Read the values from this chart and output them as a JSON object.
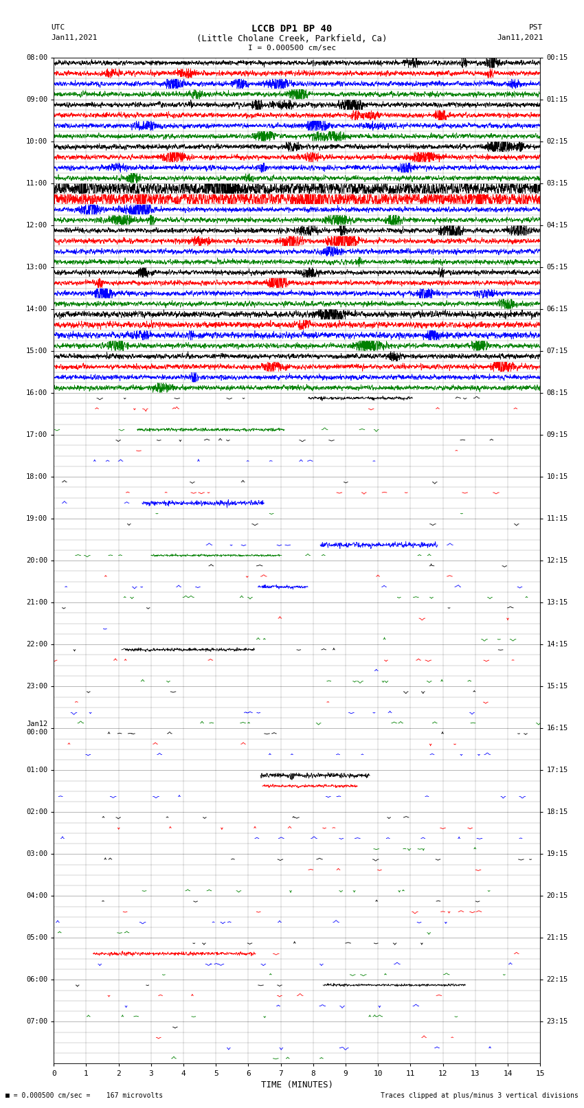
{
  "title_line1": "LCCB DP1 BP 40",
  "title_line2": "(Little Cholane Creek, Parkfield, Ca)",
  "scale_label": "I = 0.000500 cm/sec",
  "utc_label": "UTC",
  "pst_label": "PST",
  "date_left": "Jan11,2021",
  "date_right": "Jan11,2021",
  "date_left2": "Jan12",
  "xlabel": "TIME (MINUTES)",
  "footer_left": "= 0.000500 cm/sec =    167 microvolts",
  "footer_right": "Traces clipped at plus/minus 3 vertical divisions",
  "xlim": [
    0,
    15
  ],
  "xticks": [
    0,
    1,
    2,
    3,
    4,
    5,
    6,
    7,
    8,
    9,
    10,
    11,
    12,
    13,
    14,
    15
  ],
  "num_rows": 96,
  "colors_cycle": [
    "black",
    "red",
    "blue",
    "green"
  ],
  "fig_width": 8.5,
  "fig_height": 16.13,
  "left_times": [
    "08:00",
    "",
    "",
    "",
    "09:00",
    "",
    "",
    "",
    "10:00",
    "",
    "",
    "",
    "11:00",
    "",
    "",
    "",
    "12:00",
    "",
    "",
    "",
    "13:00",
    "",
    "",
    "",
    "14:00",
    "",
    "",
    "",
    "15:00",
    "",
    "",
    "",
    "16:00",
    "",
    "",
    "",
    "17:00",
    "",
    "",
    "",
    "18:00",
    "",
    "",
    "",
    "19:00",
    "",
    "",
    "",
    "20:00",
    "",
    "",
    "",
    "21:00",
    "",
    "",
    "",
    "22:00",
    "",
    "",
    "",
    "23:00",
    "",
    "",
    "",
    "Jan12\n00:00",
    "",
    "",
    "",
    "01:00",
    "",
    "",
    "",
    "02:00",
    "",
    "",
    "",
    "03:00",
    "",
    "",
    "",
    "04:00",
    "",
    "",
    "",
    "05:00",
    "",
    "",
    "",
    "06:00",
    "",
    "",
    "",
    "07:00",
    "",
    "",
    ""
  ],
  "right_times": [
    "00:15",
    "",
    "",
    "",
    "01:15",
    "",
    "",
    "",
    "02:15",
    "",
    "",
    "",
    "03:15",
    "",
    "",
    "",
    "04:15",
    "",
    "",
    "",
    "05:15",
    "",
    "",
    "",
    "06:15",
    "",
    "",
    "",
    "07:15",
    "",
    "",
    "",
    "08:15",
    "",
    "",
    "",
    "09:15",
    "",
    "",
    "",
    "10:15",
    "",
    "",
    "",
    "11:15",
    "",
    "",
    "",
    "12:15",
    "",
    "",
    "",
    "13:15",
    "",
    "",
    "",
    "14:15",
    "",
    "",
    "",
    "15:15",
    "",
    "",
    "",
    "16:15",
    "",
    "",
    "",
    "17:15",
    "",
    "",
    "",
    "18:15",
    "",
    "",
    "",
    "19:15",
    "",
    "",
    "",
    "20:15",
    "",
    "",
    "",
    "21:15",
    "",
    "",
    "",
    "22:15",
    "",
    "",
    "",
    "23:15",
    "",
    "",
    ""
  ],
  "dense_rows": 32,
  "noise_scale_dense": 0.12,
  "seismic_seed": 12345
}
